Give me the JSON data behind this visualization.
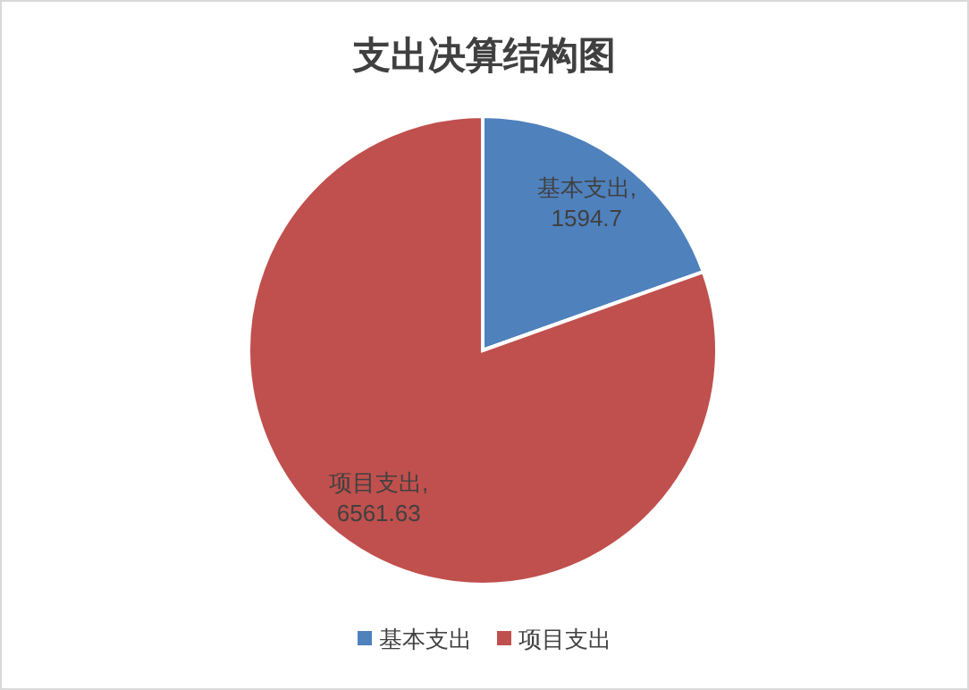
{
  "chart_data": {
    "type": "pie",
    "title": "支出决算结构图",
    "categories": [
      "基本支出",
      "项目支出"
    ],
    "values": [
      1594.7,
      6561.63
    ],
    "colors": [
      "#4f81bd",
      "#c0504d"
    ],
    "value_labels": [
      "基本支出, 1594.7",
      "项目支出, 6561.63"
    ],
    "legend": "bottom"
  }
}
